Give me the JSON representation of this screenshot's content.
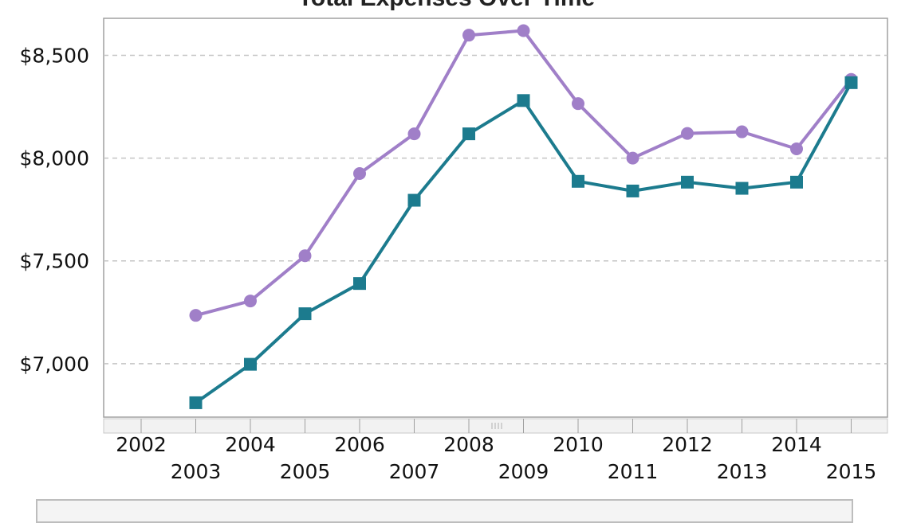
{
  "chart_data": {
    "type": "line",
    "title": "Total Expenses Over Time",
    "xlabel": "",
    "ylabel": "",
    "x": [
      2003,
      2004,
      2005,
      2006,
      2007,
      2008,
      2009,
      2010,
      2011,
      2012,
      2013,
      2014,
      2015
    ],
    "x_tick_labels": [
      "2002",
      "2003",
      "2004",
      "2005",
      "2006",
      "2007",
      "2008",
      "2009",
      "2010",
      "2011",
      "2012",
      "2013",
      "2014",
      "2015"
    ],
    "y_tick_labels": [
      "$7,000",
      "$7,500",
      "$8,000",
      "$8,500"
    ],
    "y_ticks": [
      7000,
      7500,
      8000,
      8500
    ],
    "xlim": [
      2002,
      2015
    ],
    "ylim": [
      6740,
      8680
    ],
    "grid": true,
    "series": [
      {
        "marker": "circle",
        "color": "#a07fc8",
        "values": [
          7235,
          7305,
          7525,
          7925,
          8118,
          8598,
          8620,
          8265,
          8000,
          8120,
          8128,
          8045,
          8383
        ]
      },
      {
        "marker": "square",
        "color": "#1c7b8e",
        "values": [
          6810,
          6997,
          7243,
          7390,
          7795,
          8118,
          8280,
          7887,
          7840,
          7883,
          7853,
          7883,
          8367
        ]
      }
    ]
  },
  "legend": {
    "title": ""
  }
}
